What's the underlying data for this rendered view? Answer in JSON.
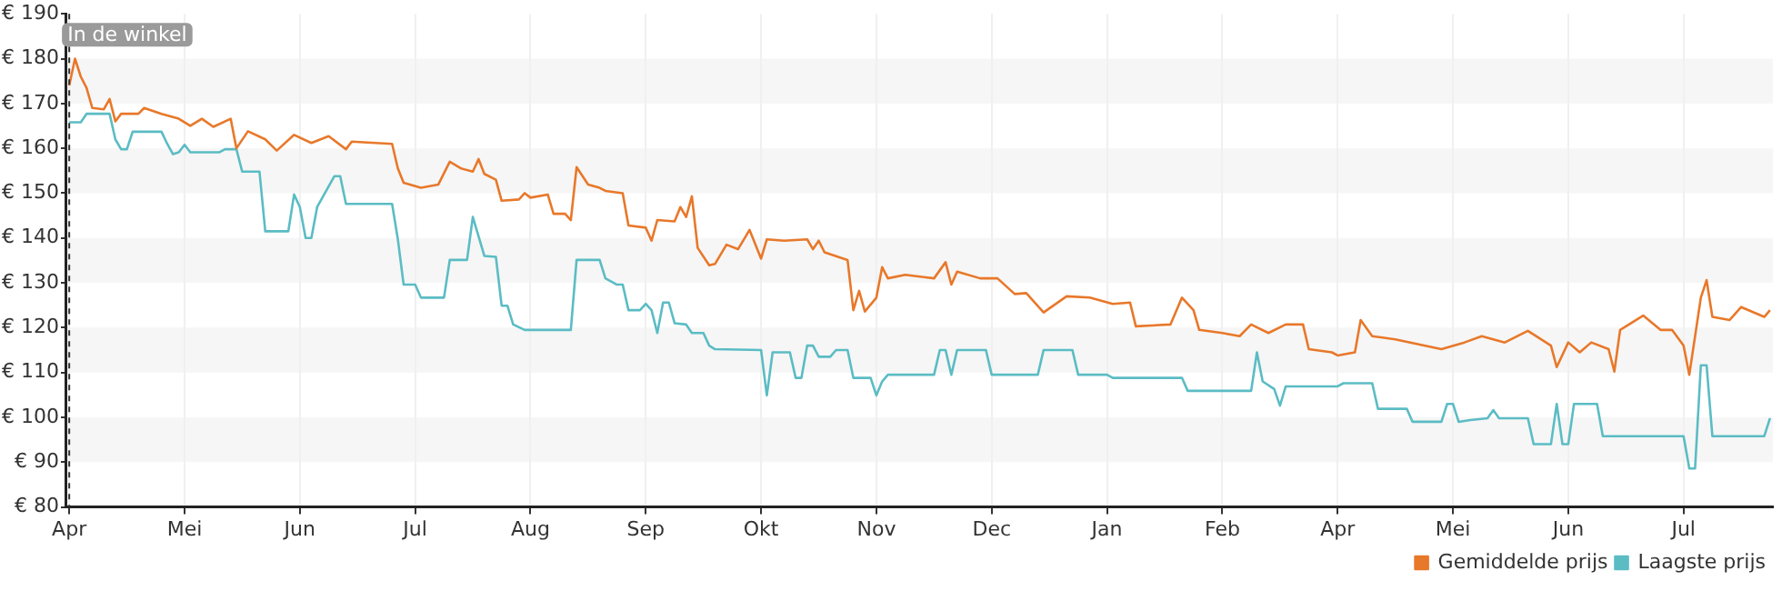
{
  "chart_data": {
    "type": "line",
    "legend": "bottom right",
    "grid": true,
    "marker": "none",
    "line_style": "solid",
    "categories": [
      "Apr",
      null,
      null,
      null,
      null,
      null,
      null,
      null,
      null,
      null,
      null,
      null,
      null,
      null,
      null,
      null,
      null,
      null,
      null,
      null,
      "Mei",
      null,
      null,
      null,
      null,
      null,
      null,
      null,
      null,
      null,
      null,
      null,
      null,
      null,
      null,
      null,
      null,
      null,
      null,
      null,
      "Jun",
      null,
      null,
      null,
      null,
      null,
      null,
      null,
      null,
      null,
      null,
      null,
      null,
      null,
      null,
      null,
      null,
      null,
      null,
      null,
      "Jul",
      null,
      null,
      null,
      null,
      null,
      null,
      null,
      null,
      null,
      null,
      null,
      null,
      null,
      null,
      null,
      null,
      null,
      null,
      null,
      "Aug",
      null,
      null,
      null,
      null,
      null,
      null,
      null,
      null,
      null,
      null,
      null,
      null,
      null,
      null,
      null,
      null,
      null,
      null,
      null,
      "Sep",
      null,
      null,
      null,
      null,
      null,
      null,
      null,
      null,
      null,
      null,
      null,
      null,
      null,
      null,
      null,
      null,
      null,
      null,
      null,
      "Okt",
      null,
      null,
      null,
      null,
      null,
      null,
      null,
      null,
      null,
      null,
      null,
      null,
      null,
      null,
      null,
      null,
      null,
      null,
      null,
      "Nov",
      null,
      null,
      null,
      null,
      null,
      null,
      null,
      null,
      null,
      null,
      null,
      null,
      null,
      null,
      null,
      null,
      null,
      null,
      null,
      "Dec",
      null,
      null,
      null,
      null,
      null,
      null,
      null,
      null,
      null,
      null,
      null,
      null,
      null,
      null,
      null,
      null,
      null,
      null,
      null,
      "Jan",
      null,
      null,
      null,
      null,
      null,
      null,
      null,
      null,
      null,
      null,
      null,
      null,
      null,
      null,
      null,
      null,
      null,
      null,
      null,
      "Feb",
      null,
      null,
      null,
      null,
      null,
      null,
      null,
      null,
      null,
      null,
      null,
      null,
      null,
      null,
      null,
      null,
      null,
      null,
      null,
      "Apr",
      null,
      null,
      null,
      null,
      null,
      null,
      null,
      null,
      null,
      null,
      null,
      null,
      null,
      null,
      null,
      null,
      null,
      null,
      null,
      "Mei",
      null,
      null,
      null,
      null,
      null,
      null,
      null,
      null,
      null,
      null,
      null,
      null,
      null,
      null,
      null,
      null,
      null,
      null,
      null,
      "Jun",
      null,
      null,
      null,
      null,
      null,
      null,
      null,
      null,
      null,
      null,
      null,
      null,
      null,
      null,
      null,
      null,
      null,
      null,
      null,
      "Jul",
      null,
      null,
      null,
      null,
      null,
      null,
      null,
      null,
      null,
      null,
      null,
      null,
      null,
      null,
      null
    ],
    "ylim": [
      80,
      190
    ],
    "yticks": [
      {
        "value": 80,
        "label": "€ 80"
      },
      {
        "value": 90,
        "label": "€ 90"
      },
      {
        "value": 100,
        "label": "€ 100"
      },
      {
        "value": 110,
        "label": "€ 110"
      },
      {
        "value": 120,
        "label": "€ 120"
      },
      {
        "value": 130,
        "label": "€ 130"
      },
      {
        "value": 140,
        "label": "€ 140"
      },
      {
        "value": 150,
        "label": "€ 150"
      },
      {
        "value": 160,
        "label": "€ 160"
      },
      {
        "value": 170,
        "label": "€ 170"
      },
      {
        "value": 180,
        "label": "€ 180"
      },
      {
        "value": 190,
        "label": "€ 190"
      }
    ],
    "ref_lines": [
      {
        "axis": "x",
        "value": "Apr",
        "label": "In de winkel",
        "line_style": "dashed",
        "color": "#333333"
      }
    ],
    "series": [
      {
        "name": "Gemiddelde prijs",
        "color": "#e8782a",
        "values": [
          174,
          180,
          176,
          173.5,
          169,
          null,
          168.7,
          171,
          166,
          167.7,
          null,
          null,
          167.7,
          169,
          null,
          null,
          167.7,
          null,
          null,
          166.6,
          null,
          165,
          null,
          166.6,
          null,
          164.8,
          null,
          null,
          166.6,
          160,
          null,
          163.8,
          null,
          null,
          162,
          null,
          159.5,
          null,
          null,
          163,
          null,
          null,
          161.2,
          null,
          null,
          162.7,
          null,
          null,
          159.8,
          161.5,
          null,
          null,
          null,
          null,
          null,
          null,
          161,
          155.5,
          152.3,
          null,
          null,
          151.2,
          null,
          null,
          151.9,
          null,
          157,
          null,
          155.5,
          null,
          154.8,
          157.6,
          154.3,
          null,
          153,
          148.3,
          null,
          null,
          148.6,
          150,
          149,
          null,
          null,
          149.7,
          145.4,
          null,
          145.4,
          144,
          155.8,
          null,
          151.9,
          null,
          151.2,
          150.5,
          null,
          null,
          150,
          142.8,
          null,
          null,
          142.3,
          139.4,
          144,
          null,
          null,
          143.7,
          146.9,
          144.7,
          149.3,
          137.8,
          null,
          133.9,
          134.2,
          null,
          138.5,
          null,
          137.5,
          null,
          141.8,
          null,
          135.4,
          139.7,
          null,
          null,
          139.4,
          null,
          null,
          null,
          139.7,
          137.5,
          139.4,
          136.8,
          null,
          null,
          null,
          135.1,
          123.9,
          128.2,
          123.6,
          null,
          126.7,
          133.5,
          131,
          null,
          null,
          131.8,
          null,
          null,
          null,
          null,
          131,
          null,
          134.6,
          129.6,
          132.5,
          null,
          null,
          null,
          131,
          null,
          null,
          131,
          null,
          null,
          127.5,
          null,
          127.7,
          null,
          null,
          123.4,
          null,
          null,
          null,
          127,
          null,
          null,
          null,
          126.7,
          null,
          null,
          null,
          125.3,
          null,
          null,
          125.6,
          120.3,
          null,
          null,
          null,
          null,
          null,
          120.7,
          null,
          126.7,
          null,
          123.9,
          119.5,
          null,
          null,
          null,
          118.8,
          null,
          null,
          118.1,
          null,
          120.7,
          null,
          null,
          118.8,
          null,
          null,
          120.7,
          null,
          null,
          120.7,
          115.2,
          null,
          null,
          null,
          114.5,
          113.8,
          null,
          null,
          114.5,
          121.7,
          null,
          118.1,
          null,
          null,
          null,
          117.4,
          null,
          null,
          null,
          null,
          116,
          null,
          null,
          115.2,
          null,
          null,
          null,
          116.7,
          null,
          null,
          118.1,
          null,
          null,
          null,
          116.7,
          null,
          null,
          null,
          119.3,
          null,
          null,
          null,
          116,
          111.2,
          null,
          116.7,
          null,
          114.5,
          null,
          116.7,
          null,
          null,
          115.2,
          110.2,
          119.5,
          null,
          null,
          null,
          122.7,
          null,
          null,
          119.5,
          null,
          119.5,
          null,
          116,
          109.5,
          null,
          126.7,
          130.6,
          122.4,
          null,
          null,
          121.7,
          null,
          124.6,
          null,
          null,
          null,
          122.4,
          123.9
        ]
      },
      {
        "name": "Laagste prijs",
        "color": "#5bbcc4",
        "values": [
          165.8,
          null,
          165.8,
          167.7,
          null,
          null,
          null,
          167.7,
          162,
          159.8,
          159.8,
          163.7,
          null,
          null,
          null,
          null,
          163.7,
          161,
          158.7,
          159.1,
          160.8,
          159.1,
          null,
          null,
          null,
          null,
          159.1,
          159.8,
          null,
          159.8,
          154.8,
          null,
          null,
          154.8,
          141.5,
          null,
          null,
          null,
          141.5,
          149.7,
          146.9,
          140,
          140,
          146.9,
          null,
          null,
          153.8,
          153.8,
          147.6,
          null,
          null,
          null,
          null,
          null,
          null,
          null,
          147.6,
          139.7,
          129.6,
          null,
          129.6,
          126.7,
          null,
          null,
          null,
          126.7,
          135.1,
          null,
          null,
          135.1,
          144.7,
          null,
          136,
          null,
          135.8,
          124.9,
          124.9,
          120.7,
          null,
          119.5,
          null,
          null,
          null,
          null,
          null,
          null,
          null,
          119.5,
          135.1,
          null,
          null,
          null,
          135.1,
          131,
          null,
          129.6,
          129.6,
          123.9,
          null,
          123.9,
          125.3,
          123.9,
          118.8,
          125.6,
          125.6,
          121,
          null,
          120.7,
          118.8,
          null,
          118.8,
          116,
          115.2,
          null,
          null,
          null,
          null,
          null,
          null,
          null,
          115,
          104.9,
          114.5,
          null,
          null,
          114.5,
          108.8,
          108.8,
          116,
          116,
          113.5,
          null,
          113.5,
          115,
          null,
          115,
          108.8,
          null,
          null,
          108.8,
          104.9,
          108,
          109.5,
          null,
          null,
          null,
          null,
          null,
          null,
          null,
          109.5,
          115,
          115,
          109.5,
          115,
          null,
          null,
          null,
          null,
          115,
          109.5,
          null,
          null,
          null,
          null,
          null,
          null,
          null,
          109.5,
          115,
          null,
          null,
          null,
          null,
          115,
          109.5,
          null,
          null,
          null,
          null,
          109.5,
          108.8,
          null,
          null,
          null,
          null,
          null,
          null,
          null,
          null,
          null,
          null,
          null,
          108.8,
          105.9,
          null,
          null,
          null,
          null,
          null,
          null,
          null,
          null,
          null,
          null,
          105.9,
          114.5,
          108,
          null,
          106.3,
          102.6,
          106.9,
          null,
          null,
          null,
          null,
          null,
          null,
          null,
          null,
          106.9,
          107.6,
          null,
          null,
          null,
          null,
          107.6,
          101.9,
          null,
          null,
          null,
          null,
          101.9,
          99,
          null,
          null,
          null,
          null,
          99,
          103,
          103,
          99,
          null,
          99.4,
          null,
          null,
          99.8,
          101.6,
          99.8,
          null,
          null,
          null,
          null,
          99.8,
          94,
          null,
          null,
          94,
          103,
          94,
          94,
          103,
          null,
          null,
          null,
          103,
          95.8,
          null,
          null,
          null,
          null,
          null,
          null,
          null,
          null,
          null,
          null,
          null,
          null,
          null,
          95.8,
          88.6,
          88.6,
          111.6,
          111.6,
          95.8,
          null,
          null,
          null,
          null,
          null,
          null,
          null,
          null,
          95.8,
          99.8
        ]
      }
    ]
  }
}
